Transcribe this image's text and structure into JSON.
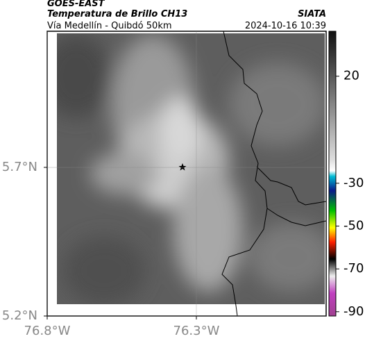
{
  "header": {
    "source": "GOES-EAST",
    "title": "Temperatura de Brillo CH13",
    "subtitle": "Vía Medellín - Quibdó 50km",
    "brand": "SIATA",
    "datetime": "2024-10-16 10:39"
  },
  "map": {
    "xlim": [
      -76.8,
      -75.865
    ],
    "ylim": [
      5.2,
      6.158
    ],
    "xticks": [
      {
        "value": -76.8,
        "label": "76.8°W"
      },
      {
        "value": -76.3,
        "label": "76.3°W"
      }
    ],
    "yticks": [
      {
        "value": 5.7,
        "label": "5.7°N"
      },
      {
        "value": 5.2,
        "label": "5.2°N"
      }
    ],
    "grid": true
  },
  "colorbar": {
    "clim": [
      -92,
      41
    ],
    "ticks": [
      20,
      -30,
      -50,
      -70,
      -90
    ]
  }
}
